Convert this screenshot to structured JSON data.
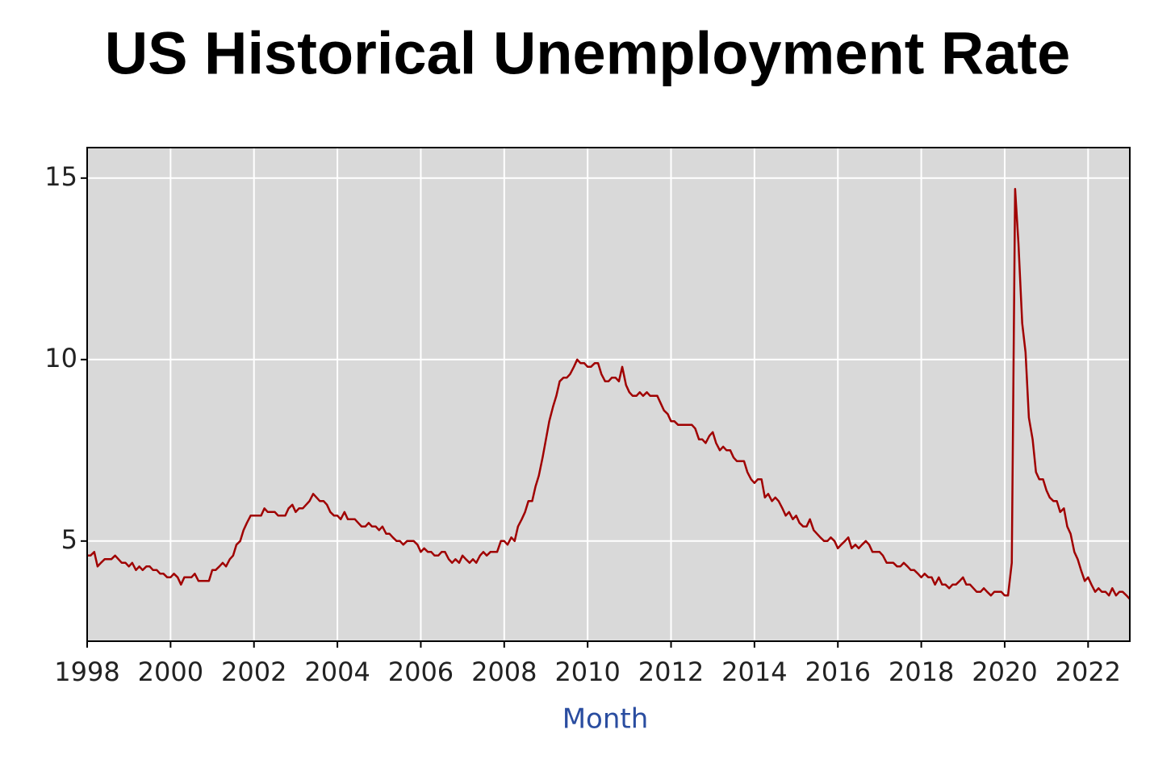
{
  "chart_data": {
    "type": "line",
    "title": "US Historical Unemployment Rate",
    "x_label": "Month",
    "color": "#a00000",
    "grid": true,
    "xlim": [
      1998,
      2023
    ],
    "ylim": [
      2.24,
      15.84
    ],
    "xticks": [
      1998,
      2000,
      2002,
      2004,
      2006,
      2008,
      2010,
      2012,
      2014,
      2016,
      2018,
      2020,
      2022
    ],
    "yticks": [
      5,
      10,
      15
    ],
    "x": [
      1998,
      1998.08,
      1998.17,
      1998.25,
      1998.33,
      1998.42,
      1998.5,
      1998.58,
      1998.67,
      1998.75,
      1998.83,
      1998.92,
      1999,
      1999.08,
      1999.17,
      1999.25,
      1999.33,
      1999.42,
      1999.5,
      1999.58,
      1999.67,
      1999.75,
      1999.83,
      1999.92,
      2000,
      2000.08,
      2000.17,
      2000.25,
      2000.33,
      2000.42,
      2000.5,
      2000.58,
      2000.67,
      2000.75,
      2000.83,
      2000.92,
      2001,
      2001.08,
      2001.17,
      2001.25,
      2001.33,
      2001.42,
      2001.5,
      2001.58,
      2001.67,
      2001.75,
      2001.83,
      2001.92,
      2002,
      2002.08,
      2002.17,
      2002.25,
      2002.33,
      2002.42,
      2002.5,
      2002.58,
      2002.67,
      2002.75,
      2002.83,
      2002.92,
      2003,
      2003.08,
      2003.17,
      2003.25,
      2003.33,
      2003.42,
      2003.5,
      2003.58,
      2003.67,
      2003.75,
      2003.83,
      2003.92,
      2004,
      2004.08,
      2004.17,
      2004.25,
      2004.33,
      2004.42,
      2004.5,
      2004.58,
      2004.67,
      2004.75,
      2004.83,
      2004.92,
      2005,
      2005.08,
      2005.17,
      2005.25,
      2005.33,
      2005.42,
      2005.5,
      2005.58,
      2005.67,
      2005.75,
      2005.83,
      2005.92,
      2006,
      2006.08,
      2006.17,
      2006.25,
      2006.33,
      2006.42,
      2006.5,
      2006.58,
      2006.67,
      2006.75,
      2006.83,
      2006.92,
      2007,
      2007.08,
      2007.17,
      2007.25,
      2007.33,
      2007.42,
      2007.5,
      2007.58,
      2007.67,
      2007.75,
      2007.83,
      2007.92,
      2008,
      2008.08,
      2008.17,
      2008.25,
      2008.33,
      2008.42,
      2008.5,
      2008.58,
      2008.67,
      2008.75,
      2008.83,
      2008.92,
      2009,
      2009.08,
      2009.17,
      2009.25,
      2009.33,
      2009.42,
      2009.5,
      2009.58,
      2009.67,
      2009.75,
      2009.83,
      2009.92,
      2010,
      2010.08,
      2010.17,
      2010.25,
      2010.33,
      2010.42,
      2010.5,
      2010.58,
      2010.67,
      2010.75,
      2010.83,
      2010.92,
      2011,
      2011.08,
      2011.17,
      2011.25,
      2011.33,
      2011.42,
      2011.5,
      2011.58,
      2011.67,
      2011.75,
      2011.83,
      2011.92,
      2012,
      2012.08,
      2012.17,
      2012.25,
      2012.33,
      2012.42,
      2012.5,
      2012.58,
      2012.67,
      2012.75,
      2012.83,
      2012.92,
      2013,
      2013.08,
      2013.17,
      2013.25,
      2013.33,
      2013.42,
      2013.5,
      2013.58,
      2013.67,
      2013.75,
      2013.83,
      2013.92,
      2014,
      2014.08,
      2014.17,
      2014.25,
      2014.33,
      2014.42,
      2014.5,
      2014.58,
      2014.67,
      2014.75,
      2014.83,
      2014.92,
      2015,
      2015.08,
      2015.17,
      2015.25,
      2015.33,
      2015.42,
      2015.5,
      2015.58,
      2015.67,
      2015.75,
      2015.83,
      2015.92,
      2016,
      2016.08,
      2016.17,
      2016.25,
      2016.33,
      2016.42,
      2016.5,
      2016.58,
      2016.67,
      2016.75,
      2016.83,
      2016.92,
      2017,
      2017.08,
      2017.17,
      2017.25,
      2017.33,
      2017.42,
      2017.5,
      2017.58,
      2017.67,
      2017.75,
      2017.83,
      2017.92,
      2018,
      2018.08,
      2018.17,
      2018.25,
      2018.33,
      2018.42,
      2018.5,
      2018.58,
      2018.67,
      2018.75,
      2018.83,
      2018.92,
      2019,
      2019.08,
      2019.17,
      2019.25,
      2019.33,
      2019.42,
      2019.5,
      2019.58,
      2019.67,
      2019.75,
      2019.83,
      2019.92,
      2020,
      2020.08,
      2020.17,
      2020.25,
      2020.33,
      2020.42,
      2020.5,
      2020.58,
      2020.67,
      2020.75,
      2020.83,
      2020.92,
      2021,
      2021.08,
      2021.17,
      2021.25,
      2021.33,
      2021.42,
      2021.5,
      2021.58,
      2021.67,
      2021.75,
      2021.83,
      2021.92,
      2022,
      2022.08,
      2022.17,
      2022.25,
      2022.33,
      2022.42,
      2022.5,
      2022.58,
      2022.67,
      2022.75,
      2022.83,
      2022.92,
      2023
    ],
    "values": [
      4.6,
      4.6,
      4.7,
      4.3,
      4.4,
      4.5,
      4.5,
      4.5,
      4.6,
      4.5,
      4.4,
      4.4,
      4.3,
      4.4,
      4.2,
      4.3,
      4.2,
      4.3,
      4.3,
      4.2,
      4.2,
      4.1,
      4.1,
      4.0,
      4.0,
      4.1,
      4.0,
      3.8,
      4.0,
      4.0,
      4.0,
      4.1,
      3.9,
      3.9,
      3.9,
      3.9,
      4.2,
      4.2,
      4.3,
      4.4,
      4.3,
      4.5,
      4.6,
      4.9,
      5.0,
      5.3,
      5.5,
      5.7,
      5.7,
      5.7,
      5.7,
      5.9,
      5.8,
      5.8,
      5.8,
      5.7,
      5.7,
      5.7,
      5.9,
      6.0,
      5.8,
      5.9,
      5.9,
      6.0,
      6.1,
      6.3,
      6.2,
      6.1,
      6.1,
      6.0,
      5.8,
      5.7,
      5.7,
      5.6,
      5.8,
      5.6,
      5.6,
      5.6,
      5.5,
      5.4,
      5.4,
      5.5,
      5.4,
      5.4,
      5.3,
      5.4,
      5.2,
      5.2,
      5.1,
      5.0,
      5.0,
      4.9,
      5.0,
      5.0,
      5.0,
      4.9,
      4.7,
      4.8,
      4.7,
      4.7,
      4.6,
      4.6,
      4.7,
      4.7,
      4.5,
      4.4,
      4.5,
      4.4,
      4.6,
      4.5,
      4.4,
      4.5,
      4.4,
      4.6,
      4.7,
      4.6,
      4.7,
      4.7,
      4.7,
      5.0,
      5.0,
      4.9,
      5.1,
      5.0,
      5.4,
      5.6,
      5.8,
      6.1,
      6.1,
      6.5,
      6.8,
      7.3,
      7.8,
      8.3,
      8.7,
      9.0,
      9.4,
      9.5,
      9.5,
      9.6,
      9.8,
      10.0,
      9.9,
      9.9,
      9.8,
      9.8,
      9.9,
      9.9,
      9.6,
      9.4,
      9.4,
      9.5,
      9.5,
      9.4,
      9.8,
      9.3,
      9.1,
      9.0,
      9.0,
      9.1,
      9.0,
      9.1,
      9.0,
      9.0,
      9.0,
      8.8,
      8.6,
      8.5,
      8.3,
      8.3,
      8.2,
      8.2,
      8.2,
      8.2,
      8.2,
      8.1,
      7.8,
      7.8,
      7.7,
      7.9,
      8.0,
      7.7,
      7.5,
      7.6,
      7.5,
      7.5,
      7.3,
      7.2,
      7.2,
      7.2,
      6.9,
      6.7,
      6.6,
      6.7,
      6.7,
      6.2,
      6.3,
      6.1,
      6.2,
      6.1,
      5.9,
      5.7,
      5.8,
      5.6,
      5.7,
      5.5,
      5.4,
      5.4,
      5.6,
      5.3,
      5.2,
      5.1,
      5.0,
      5.0,
      5.1,
      5.0,
      4.8,
      4.9,
      5.0,
      5.1,
      4.8,
      4.9,
      4.8,
      4.9,
      5.0,
      4.9,
      4.7,
      4.7,
      4.7,
      4.6,
      4.4,
      4.4,
      4.4,
      4.3,
      4.3,
      4.4,
      4.3,
      4.2,
      4.2,
      4.1,
      4.0,
      4.1,
      4.0,
      4.0,
      3.8,
      4.0,
      3.8,
      3.8,
      3.7,
      3.8,
      3.8,
      3.9,
      4.0,
      3.8,
      3.8,
      3.7,
      3.6,
      3.6,
      3.7,
      3.6,
      3.5,
      3.6,
      3.6,
      3.6,
      3.5,
      3.5,
      4.4,
      14.7,
      13.2,
      11.0,
      10.2,
      8.4,
      7.8,
      6.9,
      6.7,
      6.7,
      6.4,
      6.2,
      6.1,
      6.1,
      5.8,
      5.9,
      5.4,
      5.2,
      4.7,
      4.5,
      4.2,
      3.9,
      4.0,
      3.8,
      3.6,
      3.7,
      3.6,
      3.6,
      3.5,
      3.7,
      3.5,
      3.6,
      3.6,
      3.5,
      3.4
    ]
  }
}
